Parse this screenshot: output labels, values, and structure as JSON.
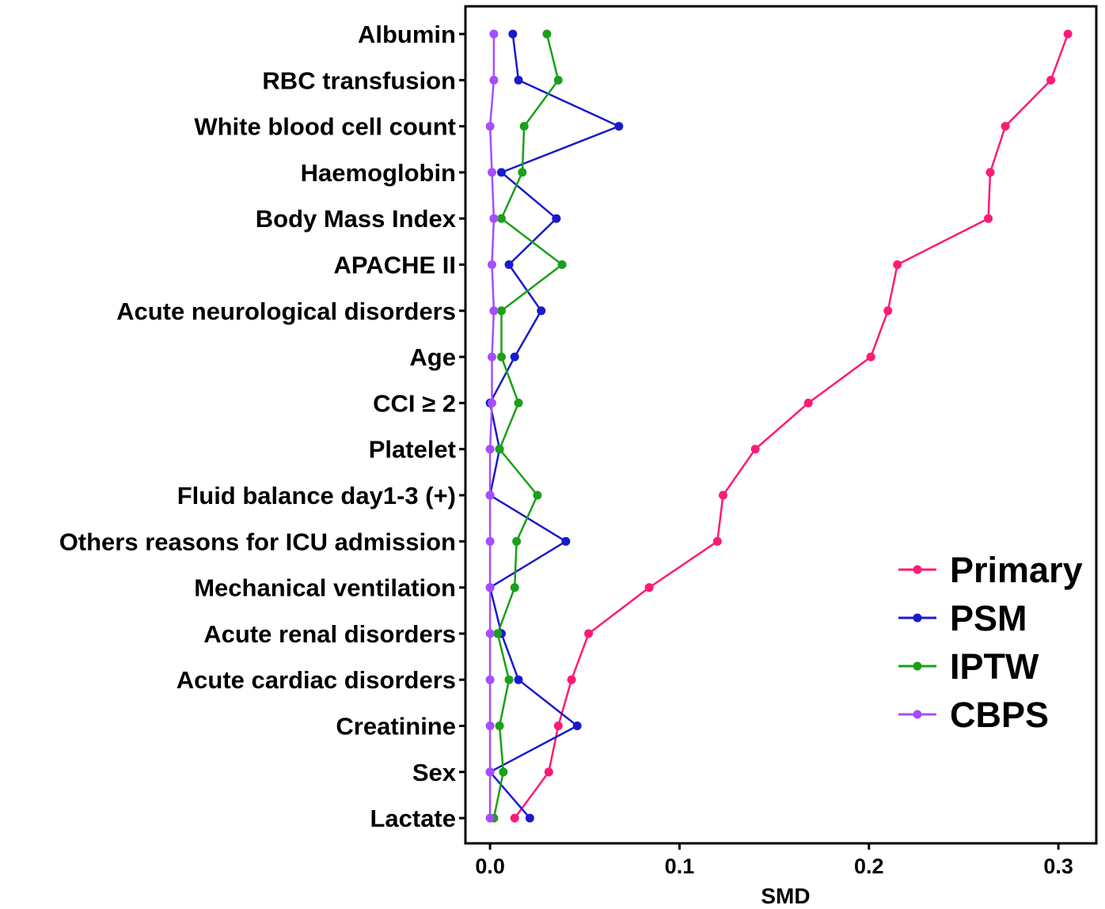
{
  "chart_data": {
    "type": "line",
    "title": "",
    "xlabel": "SMD",
    "ylabel": "",
    "xlim": [
      -0.013,
      0.32
    ],
    "xticks": [
      0.0,
      0.1,
      0.2,
      0.3
    ],
    "xtick_labels": [
      "0.0",
      "0.1",
      "0.2",
      "0.3"
    ],
    "grid": false,
    "legend_position": "bottom-right",
    "categories": [
      "Albumin",
      "RBC transfusion",
      "White blood cell count",
      "Haemoglobin",
      "Body Mass Index",
      "APACHE II",
      "Acute neurological disorders",
      "Age",
      "CCI ≥ 2",
      "Platelet",
      "Fluid balance day1-3 (+)",
      "Others reasons for ICU admission",
      "Mechanical ventilation",
      "Acute renal disorders",
      "Acute cardiac disorders",
      "Creatinine",
      "Sex",
      "Lactate"
    ],
    "series": [
      {
        "name": "Primary",
        "color": "#ff1a75",
        "values": [
          0.305,
          0.296,
          0.272,
          0.264,
          0.263,
          0.215,
          0.21,
          0.201,
          0.168,
          0.14,
          0.123,
          0.12,
          0.084,
          0.052,
          0.043,
          0.036,
          0.031,
          0.013
        ]
      },
      {
        "name": "PSM",
        "color": "#1a1acc",
        "values": [
          0.012,
          0.015,
          0.068,
          0.006,
          0.035,
          0.01,
          0.027,
          0.013,
          0.0,
          0.005,
          0.0,
          0.04,
          0.0,
          0.006,
          0.015,
          0.046,
          0.0,
          0.021
        ]
      },
      {
        "name": "IPTW",
        "color": "#1aa01a",
        "values": [
          0.03,
          0.036,
          0.018,
          0.017,
          0.006,
          0.038,
          0.006,
          0.006,
          0.015,
          0.005,
          0.025,
          0.014,
          0.013,
          0.004,
          0.01,
          0.005,
          0.007,
          0.002
        ]
      },
      {
        "name": "CBPS",
        "color": "#a64dff",
        "values": [
          0.002,
          0.002,
          0.0,
          0.001,
          0.002,
          0.001,
          0.002,
          0.001,
          0.001,
          0.0,
          0.0,
          0.0,
          0.0,
          0.0,
          0.0,
          0.0,
          0.0,
          0.0
        ]
      }
    ]
  }
}
